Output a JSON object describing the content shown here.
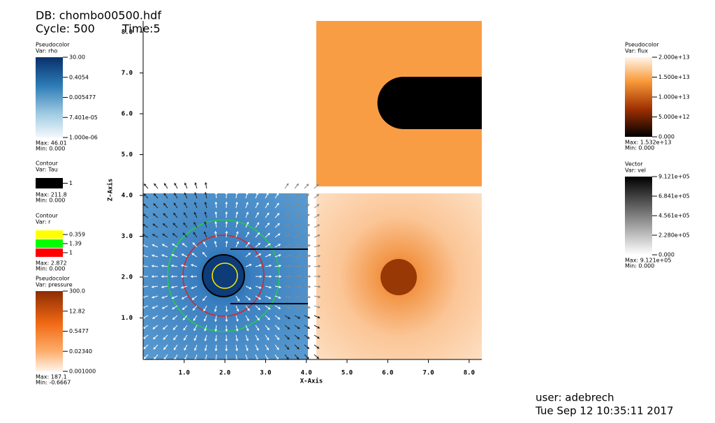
{
  "header": {
    "db": "DB: chombo00500.hdf",
    "cycle": "Cycle: 500",
    "time": "Time:5"
  },
  "legends": [
    {
      "title": "Pseudocolor",
      "var": "Var: rho",
      "ticks": [
        "30.00",
        "0.4054",
        "0.005477",
        "7.401e-05",
        "1.000e-06"
      ],
      "max": "Max:  46.01",
      "min": "Min:  0.000"
    },
    {
      "title": "Contour",
      "var": "Var: Tau",
      "ticks": [
        "1"
      ],
      "max": "Max:  211.8",
      "min": "Min:  0.000"
    },
    {
      "title": "Contour",
      "var": "Var: r",
      "ticks": [
        "0.359",
        "1.39",
        "1"
      ],
      "max": "Max:  2.872",
      "min": "Min:  0.000"
    },
    {
      "title": "Pseudocolor",
      "var": "Var: pressure",
      "ticks": [
        "300.0",
        "12.82",
        "0.5477",
        "0.02340",
        "0.001000"
      ],
      "max": "Max:  187.1",
      "min": "Min:  -0.6667"
    },
    {
      "title": "Pseudocolor",
      "var": "Var: flux",
      "ticks": [
        "2.000e+13",
        "1.500e+13",
        "1.000e+13",
        "5.000e+12",
        "0.000"
      ],
      "max": "Max:  1.532e+13",
      "min": "Min:  0.000"
    },
    {
      "title": "Vector",
      "var": "Var: vel",
      "ticks": [
        "9.121e+05",
        "6.841e+05",
        "4.561e+05",
        "2.280e+05",
        "0.000"
      ],
      "max": "Max:  9.121e+05",
      "min": "Min:  0.000"
    }
  ],
  "axes": {
    "x_title": "X-Axis",
    "y_title": "Z-Axis",
    "x_ticks": [
      "1.0",
      "2.0",
      "3.0",
      "4.0",
      "5.0",
      "6.0",
      "7.0",
      "8.0"
    ],
    "y_ticks": [
      "1.0",
      "2.0",
      "3.0",
      "4.0",
      "5.0",
      "6.0",
      "7.0",
      "8.0"
    ]
  },
  "user": "user: adebrech",
  "date": "Tue Sep 12 10:35:11 2017"
}
